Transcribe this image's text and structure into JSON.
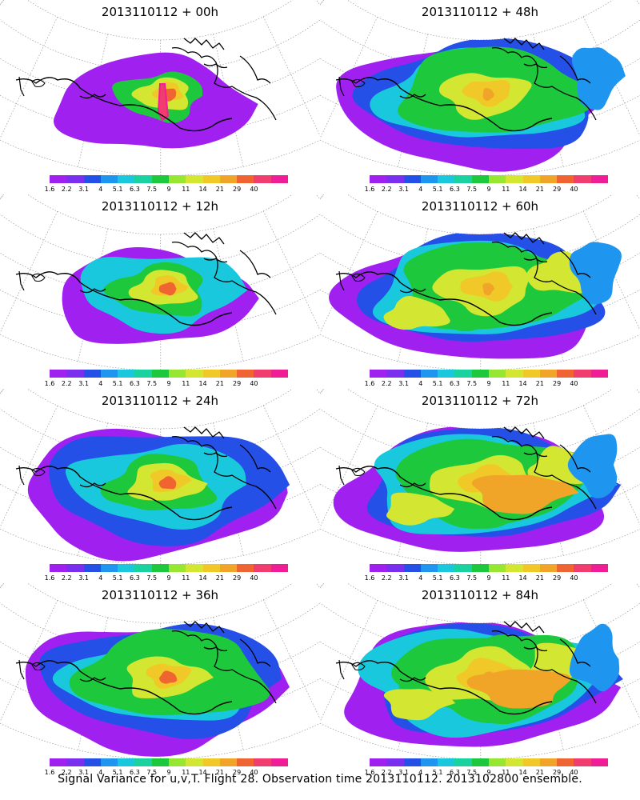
{
  "panels": [
    {
      "title": "2013110112 + 00h"
    },
    {
      "title": "2013110112 + 48h"
    },
    {
      "title": "2013110112 + 12h"
    },
    {
      "title": "2013110112 + 60h"
    },
    {
      "title": "2013110112 + 24h"
    },
    {
      "title": "2013110112 + 72h"
    },
    {
      "title": "2013110112 + 36h"
    },
    {
      "title": "2013110112 + 84h"
    }
  ],
  "colorbar": {
    "labels": [
      "1.6",
      "2.2",
      "3.1",
      "4",
      "5.1",
      "6.3",
      "7.5",
      "9",
      "11",
      "14",
      "21",
      "29",
      "40"
    ],
    "colors": [
      "#a020f0",
      "#7a2ff0",
      "#2550e8",
      "#1e96f0",
      "#19c8dc",
      "#19d2a0",
      "#1ec83c",
      "#96e632",
      "#d2e632",
      "#f0c828",
      "#f0a528",
      "#f06432",
      "#f03c6e",
      "#f01e96"
    ]
  },
  "footer": {
    "text": "Signal Variance for u,v,T. Flight 28. Observation time 2013110112. 2013102800 ensemble."
  }
}
